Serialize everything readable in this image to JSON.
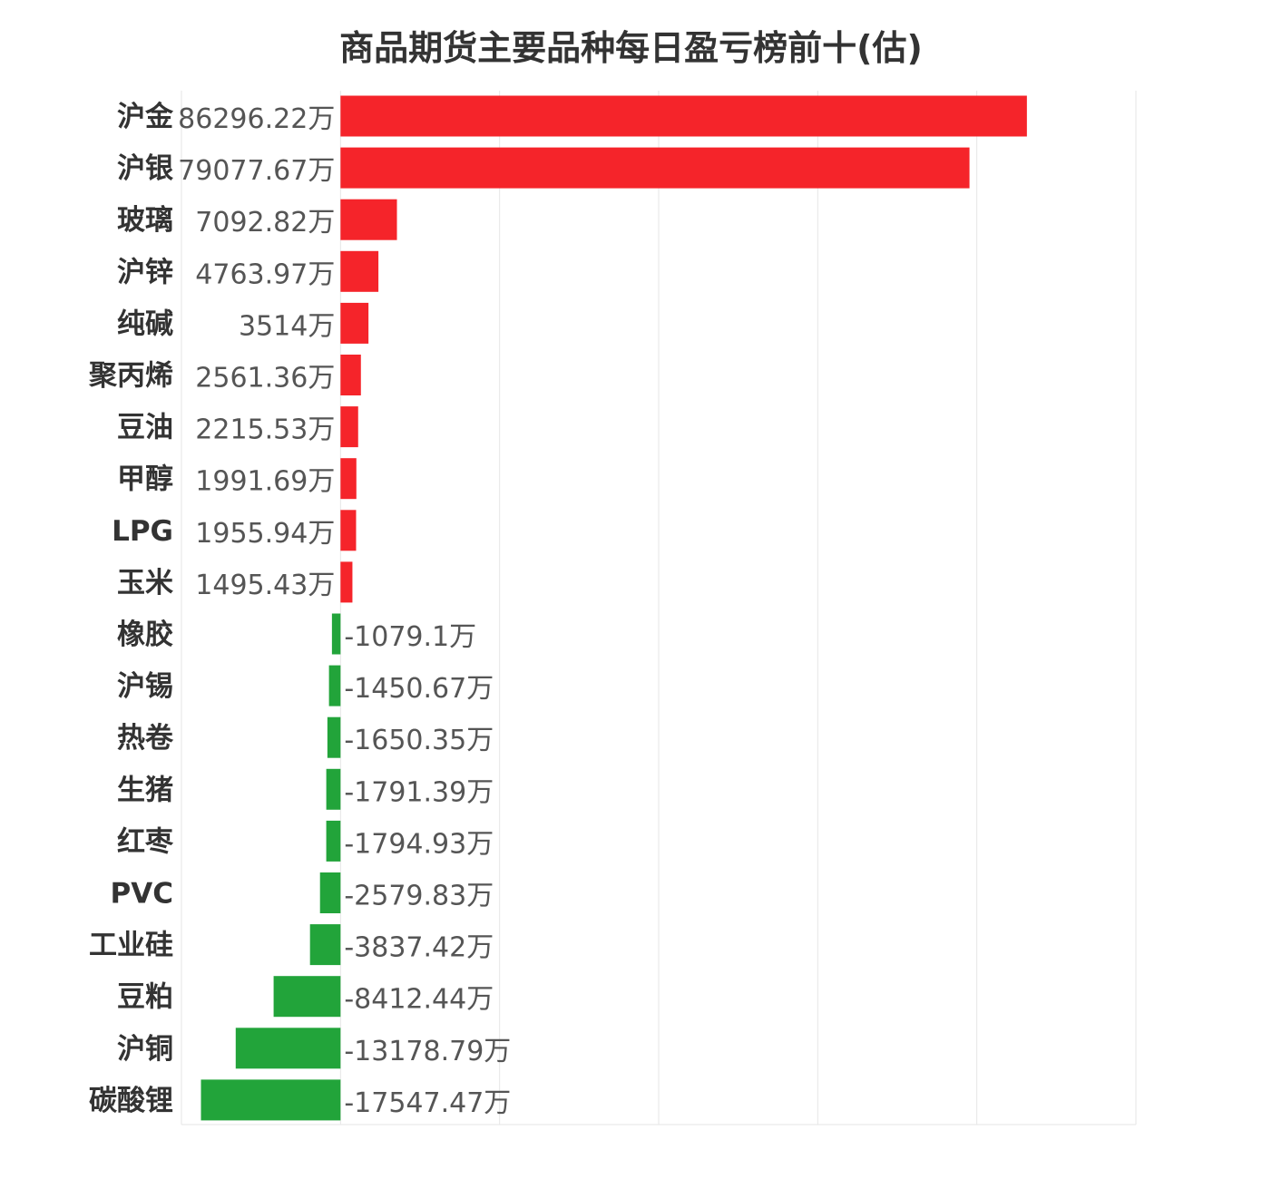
{
  "chart_data": {
    "type": "bar",
    "orientation": "horizontal",
    "title": "商品期货主要品种每日盈亏榜前十(估)",
    "xlabel": "",
    "ylabel": "",
    "unit": "万",
    "xlim": [
      -20000,
      100000
    ],
    "grid": true,
    "legend": "none",
    "colors": {
      "positive": "#f5242a",
      "negative": "#22a43a"
    },
    "categories": [
      "沪金",
      "沪银",
      "玻璃",
      "沪锌",
      "纯碱",
      "聚丙烯",
      "豆油",
      "甲醇",
      "LPG",
      "玉米",
      "橡胶",
      "沪锡",
      "热卷",
      "生猪",
      "红枣",
      "PVC",
      "工业硅",
      "豆粕",
      "沪铜",
      "碳酸锂"
    ],
    "values": [
      86296.22,
      79077.67,
      7092.82,
      4763.97,
      3514,
      2561.36,
      2215.53,
      1991.69,
      1955.94,
      1495.43,
      -1079.1,
      -1450.67,
      -1650.35,
      -1791.39,
      -1794.93,
      -2579.83,
      -3837.42,
      -8412.44,
      -13178.79,
      -17547.47
    ],
    "labels": [
      "86296.22万",
      "79077.67万",
      "7092.82万",
      "4763.97万",
      "3514万",
      "2561.36万",
      "2215.53万",
      "1991.69万",
      "1955.94万",
      "1495.43万",
      "-1079.1万",
      "-1450.67万",
      "-1650.35万",
      "-1791.39万",
      "-1794.93万",
      "-2579.83万",
      "-3837.42万",
      "-8412.44万",
      "-13178.79万",
      "-17547.47万"
    ]
  }
}
